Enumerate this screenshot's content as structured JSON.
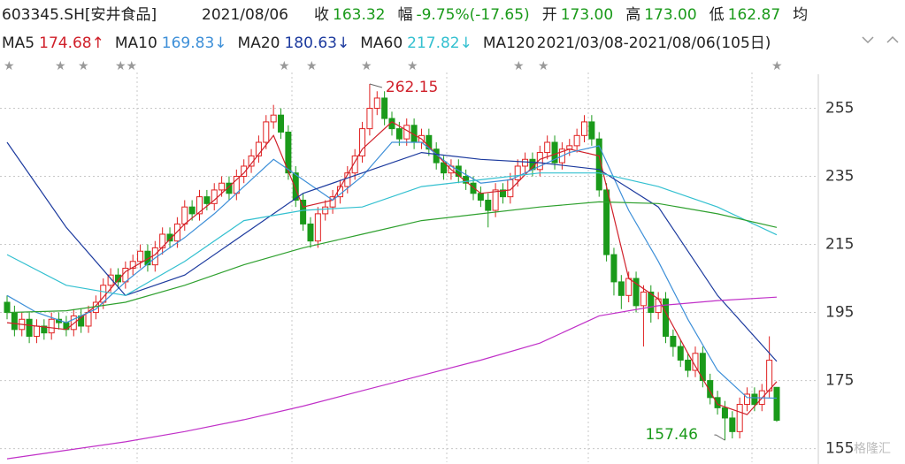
{
  "chart_data": {
    "type": "candlestick",
    "title": "603345.SH[安井食品]",
    "date": "2021/08/06",
    "quote": [
      {
        "label": "收",
        "text": "163.32"
      },
      {
        "label": "幅",
        "text": "-9.75%(-17.65)"
      },
      {
        "label": "开",
        "text": "173.00"
      },
      {
        "label": "高",
        "text": "173.00"
      },
      {
        "label": "低",
        "text": "162.87"
      },
      {
        "label": "均"
      }
    ],
    "legend_extra": [
      "MA120",
      "2021/03/08-2021/08/06(105日)"
    ],
    "up_color": "#e02020",
    "down_color": "#1a9a1a",
    "open": [
      198,
      195,
      190,
      193,
      188,
      191,
      189,
      193,
      192,
      190,
      194,
      191,
      195,
      198,
      203,
      206,
      204,
      208,
      210,
      213,
      209,
      214,
      218,
      216,
      221,
      226,
      224,
      229,
      227,
      231,
      233,
      230,
      235,
      238,
      241,
      245,
      251,
      253,
      248,
      236,
      228,
      221,
      216,
      224,
      226,
      229,
      232,
      236,
      241,
      249,
      255,
      258,
      252,
      249,
      246,
      250,
      245,
      247,
      243,
      239,
      236,
      238,
      235,
      233,
      230,
      228,
      225,
      231,
      229,
      234,
      238,
      240,
      237,
      242,
      245,
      239,
      243,
      244,
      247,
      251,
      246,
      231,
      212,
      204,
      200,
      205,
      197,
      201,
      195,
      199,
      188,
      185,
      181,
      178,
      183,
      175,
      170,
      167,
      164,
      160,
      168,
      171,
      168,
      172,
      173
    ],
    "high": [
      200,
      197,
      195,
      195,
      193,
      193,
      195,
      195,
      194,
      196,
      196,
      197,
      200,
      205,
      208,
      208,
      210,
      212,
      215,
      215,
      216,
      220,
      220,
      223,
      228,
      228,
      231,
      231,
      233,
      235,
      235,
      237,
      240,
      243,
      247,
      253,
      256,
      255,
      250,
      238,
      230,
      223,
      226,
      228,
      231,
      234,
      238,
      243,
      251,
      262.15,
      260,
      260,
      254,
      251,
      252,
      252,
      249,
      249,
      245,
      241,
      240,
      240,
      237,
      235,
      232,
      230,
      233,
      233,
      236,
      240,
      242,
      242,
      244,
      247,
      247,
      245,
      246,
      249,
      253,
      253,
      248,
      233,
      214,
      206,
      207,
      207,
      203,
      203,
      201,
      201,
      190,
      187,
      183,
      185,
      185,
      177,
      172,
      169,
      166,
      170,
      173,
      173,
      174,
      188,
      173
    ],
    "low": [
      193,
      188,
      188,
      186,
      186,
      187,
      187,
      190,
      188,
      188,
      189,
      189,
      193,
      196,
      201,
      202,
      202,
      206,
      208,
      207,
      207,
      212,
      214,
      214,
      219,
      222,
      222,
      225,
      225,
      229,
      228,
      228,
      233,
      236,
      239,
      243,
      249,
      246,
      234,
      226,
      219,
      214,
      214,
      222,
      224,
      227,
      230,
      234,
      239,
      247,
      253,
      250,
      247,
      244,
      244,
      243,
      243,
      241,
      237,
      234,
      234,
      233,
      231,
      228,
      226,
      220,
      223,
      227,
      227,
      232,
      236,
      235,
      235,
      240,
      237,
      237,
      241,
      242,
      245,
      244,
      229,
      210,
      200,
      196,
      198,
      195,
      185,
      192,
      193,
      186,
      182,
      179,
      176,
      176,
      173,
      168,
      165,
      157.46,
      158,
      158,
      166,
      166,
      166,
      170,
      162.87
    ],
    "close": [
      195,
      190,
      193,
      188,
      191,
      189,
      193,
      192,
      190,
      194,
      191,
      195,
      198,
      203,
      206,
      204,
      208,
      210,
      213,
      209,
      214,
      218,
      216,
      221,
      226,
      224,
      229,
      227,
      231,
      233,
      230,
      235,
      238,
      241,
      245,
      251,
      253,
      248,
      236,
      228,
      221,
      216,
      224,
      226,
      229,
      232,
      236,
      241,
      249,
      255,
      258,
      252,
      249,
      246,
      250,
      245,
      247,
      243,
      239,
      236,
      238,
      235,
      233,
      230,
      228,
      225,
      231,
      229,
      234,
      238,
      240,
      237,
      242,
      245,
      239,
      243,
      244,
      247,
      251,
      246,
      231,
      212,
      204,
      200,
      205,
      197,
      201,
      195,
      199,
      188,
      185,
      181,
      178,
      183,
      175,
      170,
      167,
      164,
      160,
      168,
      171,
      168,
      172,
      180.97,
      163.32
    ],
    "series": [
      {
        "name": "MA5",
        "color": "#d0202a",
        "last_label": "174.68↑",
        "x": [
          0,
          4,
          8,
          12,
          16,
          20,
          24,
          28,
          32,
          36,
          40,
          44,
          48,
          52,
          56,
          60,
          64,
          68,
          72,
          76,
          80,
          84,
          88,
          92,
          96,
          100,
          104
        ],
        "values": [
          192,
          191,
          190,
          197,
          207,
          212,
          221,
          228,
          236,
          247,
          226,
          228,
          243,
          251,
          246,
          237,
          230,
          231,
          240,
          243,
          241,
          205,
          199,
          183,
          168,
          165,
          174.68
        ]
      },
      {
        "name": "MA10",
        "color": "#3d8fd8",
        "last_label": "169.83↓",
        "x": [
          0,
          4,
          8,
          12,
          16,
          20,
          24,
          28,
          32,
          36,
          40,
          44,
          48,
          52,
          56,
          60,
          64,
          68,
          72,
          76,
          80,
          84,
          88,
          92,
          96,
          100,
          104
        ],
        "values": [
          200,
          195,
          192,
          196,
          204,
          211,
          217,
          224,
          232,
          240,
          234,
          228,
          235,
          245,
          245,
          238,
          233,
          234,
          238,
          242,
          244,
          225,
          210,
          193,
          178,
          170,
          169.83
        ]
      },
      {
        "name": "MA20",
        "color": "#1c3a9e",
        "last_label": "180.63↓",
        "x": [
          0,
          8,
          16,
          24,
          32,
          40,
          48,
          56,
          64,
          72,
          80,
          88,
          96,
          104
        ],
        "values": [
          245,
          220,
          200,
          206,
          218,
          230,
          236,
          242,
          240,
          239,
          237,
          226,
          200,
          180.63
        ]
      },
      {
        "name": "MA60",
        "color": "#33c0d0",
        "last_label": "217.82↓",
        "x": [
          0,
          8,
          16,
          24,
          32,
          40,
          48,
          56,
          64,
          72,
          80,
          88,
          96,
          104
        ],
        "values": [
          212,
          203,
          200,
          210,
          222,
          225,
          226,
          232,
          234,
          236,
          236,
          232,
          226,
          217.82
        ]
      },
      {
        "color": "#2ea02e",
        "x": [
          0,
          8,
          16,
          24,
          32,
          40,
          48,
          56,
          64,
          72,
          80,
          88,
          96,
          104
        ],
        "values": [
          195,
          195.5,
          198,
          203,
          209,
          214,
          218,
          222,
          224,
          226,
          227.5,
          227,
          224,
          220
        ]
      },
      {
        "color": "#c030c8",
        "x": [
          0,
          8,
          16,
          24,
          32,
          40,
          48,
          56,
          64,
          72,
          80,
          88,
          96,
          104
        ],
        "values": [
          152,
          154.5,
          157,
          160,
          163.5,
          167.5,
          172,
          176.5,
          181,
          186,
          194,
          197,
          198.5,
          199.5
        ]
      }
    ],
    "annotations": [
      {
        "x": 49,
        "value": 262.15,
        "color": "#d0202a"
      },
      {
        "x": 97,
        "value": 157.46,
        "color": "#1a9a1a"
      }
    ],
    "ylim": [
      151,
      265
    ],
    "yticks": [
      255,
      235,
      215,
      195,
      175,
      155
    ],
    "grid": true,
    "watermark": "格隆汇"
  }
}
